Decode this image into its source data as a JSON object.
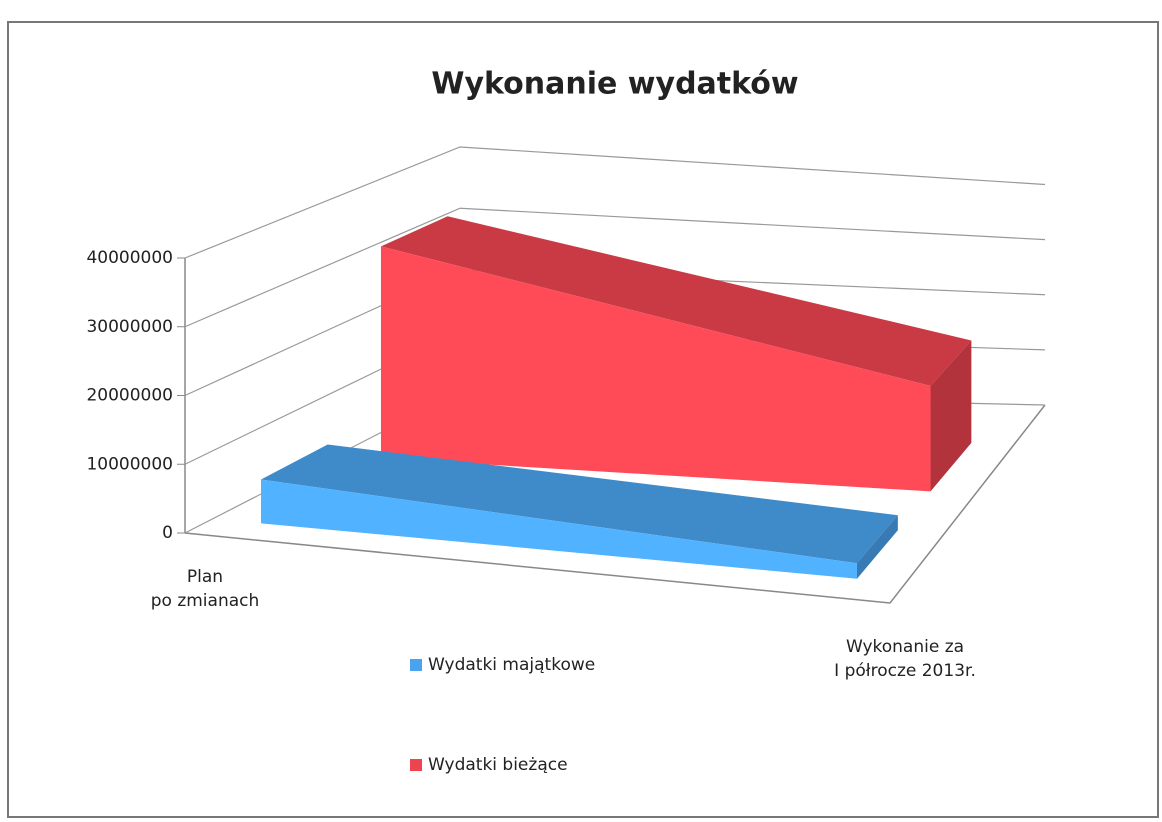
{
  "chart_data": {
    "type": "area3d",
    "title": "Wykonanie wydatków",
    "categories": [
      "Plan\npo zmianach",
      "Wykonanie za\nI półrocze 2013r."
    ],
    "series": [
      {
        "name": "Wydatki majątkowe",
        "color": "#4aa3ee",
        "values": [
          6500000,
          2500000
        ]
      },
      {
        "name": "Wydatki bieżące",
        "color": "#ee4450",
        "values": [
          33000000,
          18000000
        ]
      }
    ],
    "ylim": [
      0,
      40000000
    ],
    "yticks": [
      0,
      10000000,
      20000000,
      30000000,
      40000000
    ],
    "grid": true
  }
}
